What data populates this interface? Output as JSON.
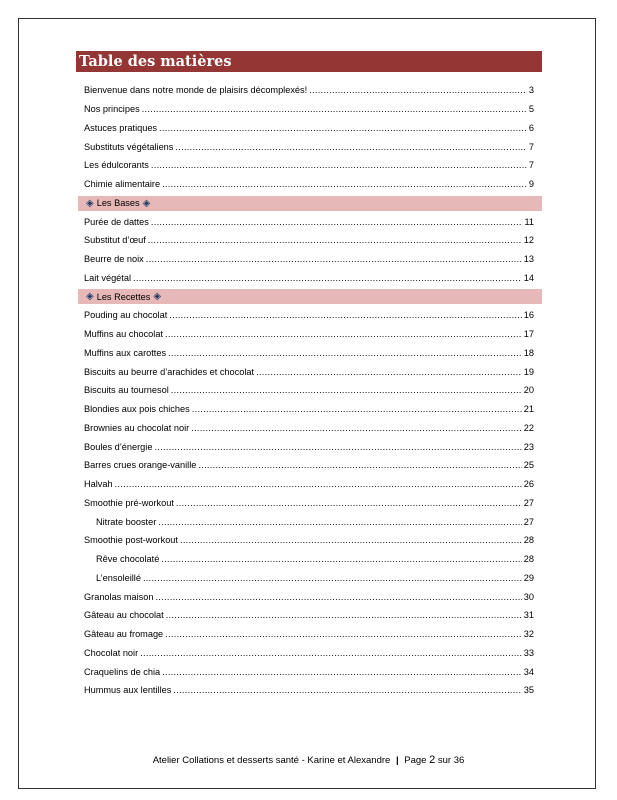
{
  "title": "Table des matières",
  "toc": [
    {
      "type": "entry",
      "label": "Bienvenue dans notre monde de plaisirs décomplexés!",
      "page": "3"
    },
    {
      "type": "entry",
      "label": "Nos principes",
      "page": "5"
    },
    {
      "type": "entry",
      "label": "Astuces pratiques",
      "page": "6"
    },
    {
      "type": "entry",
      "label": "Substituts végétaliens",
      "page": "7"
    },
    {
      "type": "entry",
      "label": "Les édulcorants",
      "page": "7"
    },
    {
      "type": "entry",
      "label": "Chimie alimentaire",
      "page": "9"
    },
    {
      "type": "section",
      "label": "Les Bases",
      "icon": "diamond-icon"
    },
    {
      "type": "entry",
      "label": "Purée de dattes",
      "page": "11"
    },
    {
      "type": "entry",
      "label": "Substitut d’œuf",
      "page": "12"
    },
    {
      "type": "entry",
      "label": "Beurre de noix",
      "page": "13"
    },
    {
      "type": "entry",
      "label": "Lait végétal",
      "page": "14"
    },
    {
      "type": "section",
      "label": "Les Recettes",
      "icon": "diamond-icon"
    },
    {
      "type": "entry",
      "label": "Pouding au chocolat",
      "page": "16"
    },
    {
      "type": "entry",
      "label": "Muffins au chocolat",
      "page": "17"
    },
    {
      "type": "entry",
      "label": "Muffins aux carottes",
      "page": "18"
    },
    {
      "type": "entry",
      "label": "Biscuits au beurre d’arachides et chocolat",
      "page": "19"
    },
    {
      "type": "entry",
      "label": "Biscuits au tournesol",
      "page": "20"
    },
    {
      "type": "entry",
      "label": "Blondies aux pois chiches",
      "page": "21"
    },
    {
      "type": "entry",
      "label": "Brownies au chocolat noir",
      "page": "22"
    },
    {
      "type": "entry",
      "label": "Boules d’énergie",
      "page": "23"
    },
    {
      "type": "entry",
      "label": "Barres crues orange-vanille",
      "page": "25"
    },
    {
      "type": "entry",
      "label": "Halvah",
      "page": "26"
    },
    {
      "type": "entry",
      "label": "Smoothie pré-workout",
      "page": "27"
    },
    {
      "type": "sub",
      "label": "Nitrate booster",
      "page": "27"
    },
    {
      "type": "entry",
      "label": "Smoothie post-workout",
      "page": "28"
    },
    {
      "type": "sub",
      "label": "Rêve chocolaté",
      "page": "28"
    },
    {
      "type": "sub",
      "label": "L’ensoleillé",
      "page": "29"
    },
    {
      "type": "entry",
      "label": "Granolas maison",
      "page": "30"
    },
    {
      "type": "entry",
      "label": "Gâteau au chocolat",
      "page": "31"
    },
    {
      "type": "entry",
      "label": "Gâteau au fromage",
      "page": "32"
    },
    {
      "type": "entry",
      "label": "Chocolat noir",
      "page": "33"
    },
    {
      "type": "entry",
      "label": "Craquelins de chia",
      "page": "34"
    },
    {
      "type": "entry",
      "label": "Hummus aux lentilles",
      "page": "35"
    }
  ],
  "footer": {
    "text": "Atelier Collations et desserts santé - Karine et Alexandre",
    "separator": "|",
    "page_prefix": "Page",
    "page_current": "2",
    "page_middle": "sur",
    "page_total": "36"
  },
  "colors": {
    "title_bg": "#943634",
    "section_bg": "#e6b8b7",
    "icon": "#1f3864"
  }
}
